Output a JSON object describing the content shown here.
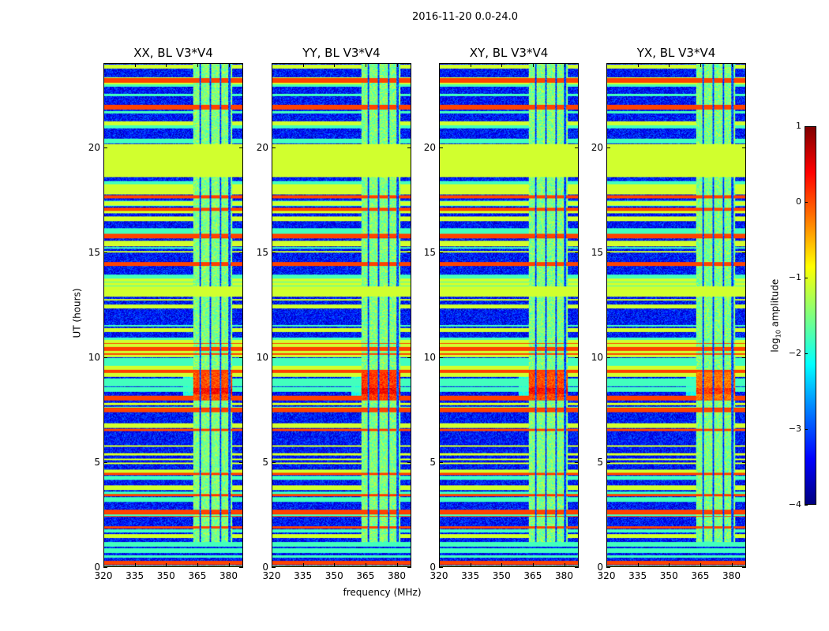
{
  "chart_data": {
    "type": "heatmap",
    "title": "2016-11-20 0.0-24.0",
    "xlabel": "frequency (MHz)",
    "ylabel": "UT (hours)",
    "xlim": [
      320,
      387
    ],
    "ylim": [
      0,
      24
    ],
    "xticks": [
      "320",
      "335",
      "350",
      "365",
      "380"
    ],
    "yticks": [
      "0",
      "5",
      "10",
      "15",
      "20"
    ],
    "panels": [
      {
        "title": "XX, BL V3*V4",
        "peak_level": 0.6
      },
      {
        "title": "YY, BL V3*V4",
        "peak_level": 0.7
      },
      {
        "title": "XY, BL V3*V4",
        "peak_level": 0.6
      },
      {
        "title": "YX, BL V3*V4",
        "peak_level": 0.4
      }
    ],
    "features": {
      "flagged_time_bands": [
        [
          18.6,
          20.2
        ],
        [
          12.9,
          13.4
        ]
      ],
      "rfi_freq_band": [
        363,
        382
      ],
      "rfi_time_range": [
        1.2,
        24
      ],
      "strong_event_hours": [
        8.0,
        9.3
      ],
      "background_level": -3.3
    },
    "colorbar": {
      "label": "log",
      "label_sub": "10",
      "label_rest": " amplitude",
      "range": [
        -4,
        1
      ],
      "ticks": [
        "1",
        "0",
        "−1",
        "−2",
        "−3",
        "−4"
      ],
      "colormap": "jet"
    }
  }
}
